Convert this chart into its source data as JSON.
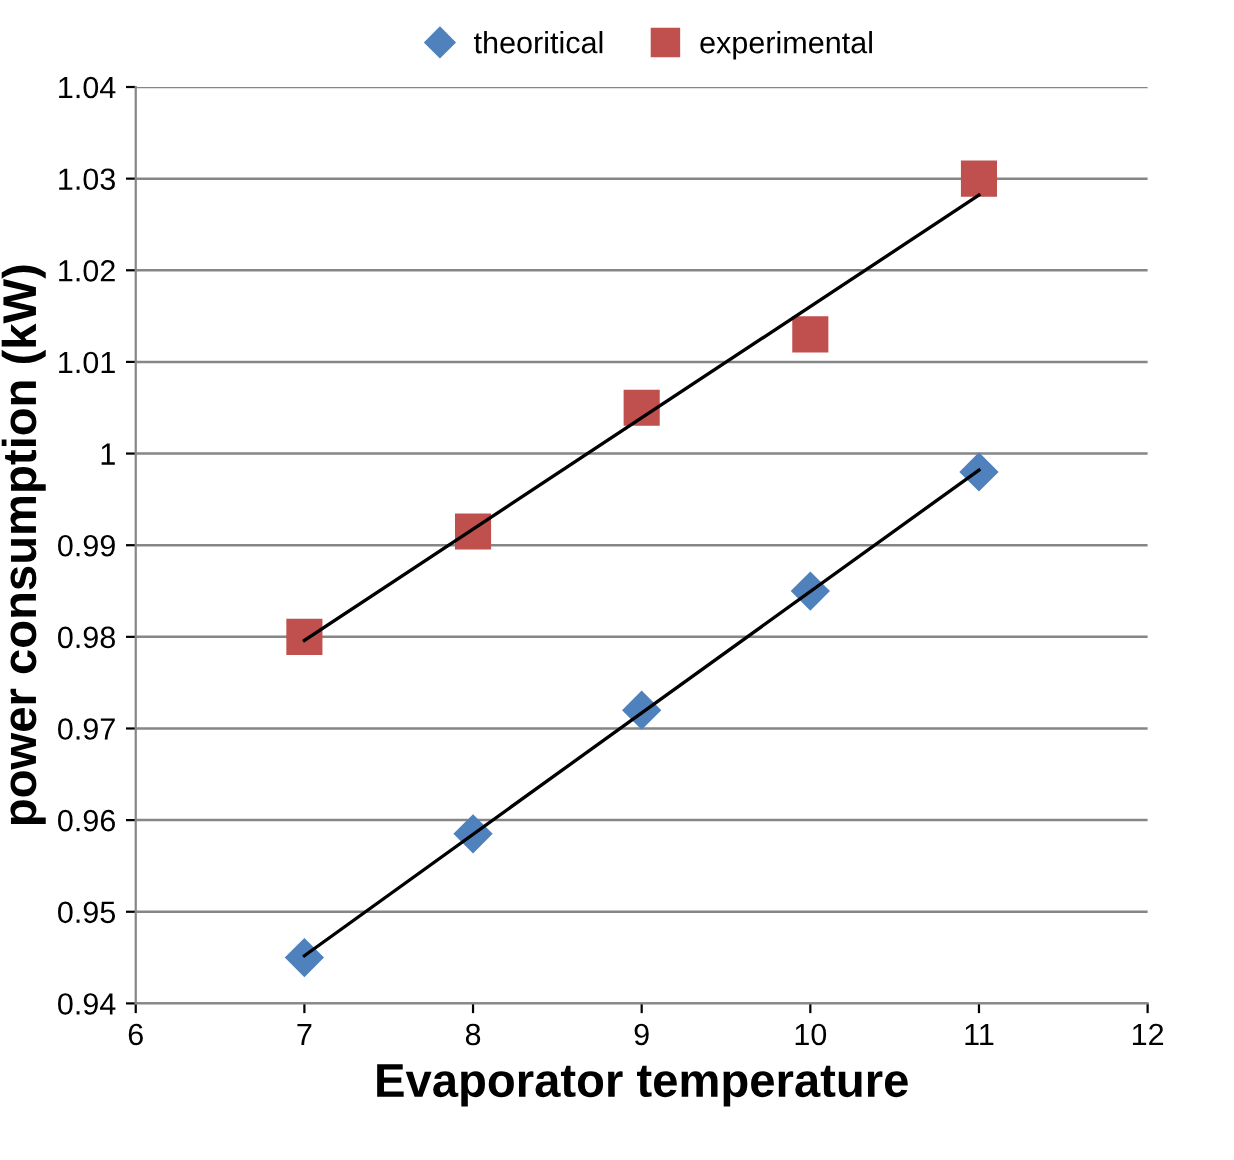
{
  "chart_data": {
    "type": "scatter",
    "xlabel": "Evaporator temperature",
    "ylabel": "power consumption (kW)",
    "xlim": [
      6,
      12
    ],
    "xticks": [
      6,
      7,
      8,
      9,
      10,
      11,
      12
    ],
    "ylim": [
      0.94,
      1.04
    ],
    "yticks": [
      {
        "value": 0.94,
        "label": "0.94"
      },
      {
        "value": 0.95,
        "label": "0.95"
      },
      {
        "value": 0.96,
        "label": "0.96"
      },
      {
        "value": 0.97,
        "label": "0.97"
      },
      {
        "value": 0.98,
        "label": "0.98"
      },
      {
        "value": 0.99,
        "label": "0.99"
      },
      {
        "value": 1,
        "label": "1"
      },
      {
        "value": 1.01,
        "label": "1.01"
      },
      {
        "value": 1.02,
        "label": "1.02"
      },
      {
        "value": 1.03,
        "label": "1.03"
      },
      {
        "value": 1.04,
        "label": "1.04"
      }
    ],
    "grid": "y",
    "legend": "top",
    "series": [
      {
        "name": "theoritical",
        "color": "#4f81bd",
        "marker": "diamond",
        "x": [
          7,
          8,
          9,
          10,
          11
        ],
        "values": [
          0.945,
          0.9585,
          0.972,
          0.985,
          0.998
        ]
      },
      {
        "name": "experimental",
        "color": "#c0504d",
        "marker": "square",
        "x": [
          7,
          8,
          9,
          10,
          11
        ],
        "values": [
          0.98,
          0.9915,
          1.005,
          1.013,
          1.03
        ]
      },
      {
        "type": "line",
        "color": "#000000",
        "marker": "none",
        "x": [
          7,
          11
        ],
        "values": [
          0.9452,
          0.9982
        ]
      },
      {
        "type": "line",
        "color": "#000000",
        "marker": "none",
        "x": [
          7,
          11
        ],
        "values": [
          0.9796,
          1.0282
        ]
      }
    ]
  }
}
